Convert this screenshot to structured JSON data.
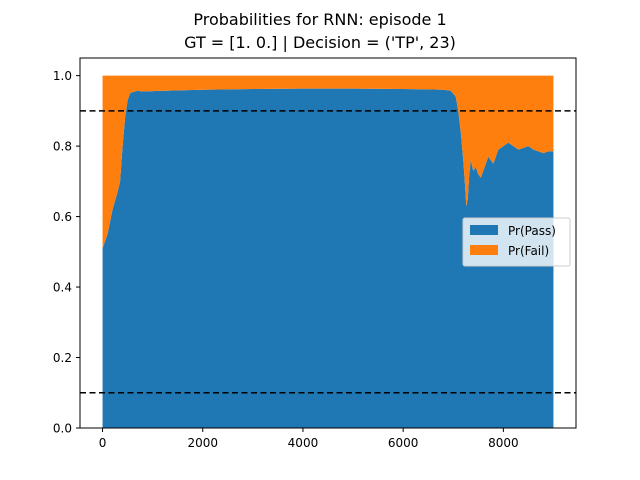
{
  "chart_data": {
    "type": "area",
    "title": "Probabilities for RNN: episode 1",
    "subtitle": "GT = [1. 0.] | Decision = ('TP', 23)",
    "xlabel": "",
    "ylabel": "",
    "xlim": [
      -450,
      9450
    ],
    "ylim": [
      0.0,
      1.05
    ],
    "x_ticks": [
      0,
      2000,
      4000,
      6000,
      8000
    ],
    "x_tick_labels": [
      "0",
      "2000",
      "4000",
      "6000",
      "8000"
    ],
    "y_ticks": [
      0.0,
      0.2,
      0.4,
      0.6,
      0.8,
      1.0
    ],
    "y_tick_labels": [
      "0.0",
      "0.2",
      "0.4",
      "0.6",
      "0.8",
      "1.0"
    ],
    "grid": false,
    "legend_position": "center-right",
    "stacked": true,
    "x": [
      0,
      100,
      200,
      300,
      350,
      400,
      450,
      500,
      550,
      600,
      700,
      800,
      1000,
      1500,
      2000,
      3000,
      4000,
      5000,
      6000,
      6500,
      6800,
      6950,
      7050,
      7100,
      7150,
      7200,
      7230,
      7260,
      7290,
      7320,
      7350,
      7400,
      7450,
      7500,
      7550,
      7600,
      7700,
      7800,
      7900,
      8000,
      8100,
      8200,
      8300,
      8400,
      8500,
      8600,
      8700,
      8800,
      8900,
      9000
    ],
    "series": [
      {
        "name": "Pr(Pass)",
        "color": "#1f77b4",
        "values": [
          0.51,
          0.55,
          0.62,
          0.67,
          0.7,
          0.8,
          0.88,
          0.93,
          0.95,
          0.953,
          0.957,
          0.955,
          0.956,
          0.958,
          0.96,
          0.962,
          0.963,
          0.963,
          0.962,
          0.961,
          0.96,
          0.957,
          0.94,
          0.9,
          0.84,
          0.76,
          0.7,
          0.63,
          0.65,
          0.72,
          0.76,
          0.73,
          0.74,
          0.72,
          0.71,
          0.73,
          0.77,
          0.75,
          0.79,
          0.8,
          0.81,
          0.8,
          0.79,
          0.795,
          0.8,
          0.79,
          0.785,
          0.78,
          0.785,
          0.785
        ]
      },
      {
        "name": "Pr(Fail)",
        "color": "#ff7f0e",
        "values": [
          0.49,
          0.45,
          0.38,
          0.33,
          0.3,
          0.2,
          0.12,
          0.07,
          0.05,
          0.047,
          0.043,
          0.045,
          0.044,
          0.042,
          0.04,
          0.038,
          0.037,
          0.037,
          0.038,
          0.039,
          0.04,
          0.043,
          0.06,
          0.1,
          0.16,
          0.24,
          0.3,
          0.37,
          0.35,
          0.28,
          0.24,
          0.27,
          0.26,
          0.28,
          0.29,
          0.27,
          0.23,
          0.25,
          0.21,
          0.2,
          0.19,
          0.2,
          0.21,
          0.205,
          0.2,
          0.21,
          0.215,
          0.22,
          0.215,
          0.215
        ]
      }
    ],
    "hlines": [
      0.9,
      0.1
    ],
    "hline_style": "dashed",
    "hline_color": "#000000"
  }
}
